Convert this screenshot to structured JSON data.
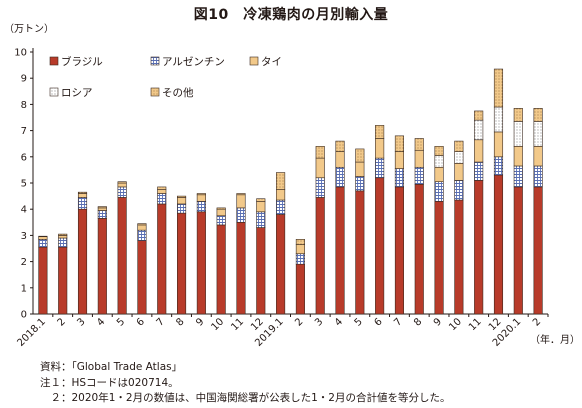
{
  "title": "図10　冷凍鶏肉の月別輸入量",
  "chart_data": {
    "type": "bar",
    "stacked": true,
    "ylabel": "（万トン）",
    "xlabel": "（年．月）",
    "ylim": [
      0,
      10
    ],
    "yticks": [
      0,
      1,
      2,
      3,
      4,
      5,
      6,
      7,
      8,
      9,
      10
    ],
    "grid": false,
    "legend_position": "top-left",
    "categories": [
      "2018.1",
      "2",
      "3",
      "4",
      "5",
      "6",
      "7",
      "8",
      "9",
      "10",
      "11",
      "12",
      "2019.1",
      "2",
      "3",
      "4",
      "5",
      "6",
      "7",
      "8",
      "9",
      "10",
      "11",
      "12",
      "2020.1",
      "2"
    ],
    "series": [
      {
        "name": "ブラジル",
        "color": "#b83b2a",
        "pattern": "solid",
        "values": [
          2.55,
          2.55,
          4.0,
          3.65,
          4.45,
          2.8,
          4.2,
          3.85,
          3.9,
          3.4,
          3.5,
          3.3,
          3.8,
          1.9,
          4.45,
          4.85,
          4.7,
          5.2,
          4.85,
          4.95,
          4.3,
          4.35,
          5.1,
          5.3,
          4.85,
          4.85
        ]
      },
      {
        "name": "アルゼンチン",
        "color": "#6f86c4",
        "pattern": "grid",
        "values": [
          0.3,
          0.35,
          0.45,
          0.3,
          0.4,
          0.4,
          0.4,
          0.35,
          0.4,
          0.35,
          0.55,
          0.6,
          0.55,
          0.4,
          0.75,
          0.75,
          0.55,
          0.75,
          0.7,
          0.65,
          0.75,
          0.75,
          0.7,
          0.7,
          0.8,
          0.8
        ]
      },
      {
        "name": "タイ",
        "color": "#f2c98a",
        "pattern": "solid",
        "values": [
          0.1,
          0.1,
          0.15,
          0.1,
          0.15,
          0.2,
          0.15,
          0.25,
          0.25,
          0.25,
          0.5,
          0.4,
          0.4,
          0.35,
          0.75,
          0.6,
          0.55,
          0.75,
          0.65,
          0.65,
          0.55,
          0.65,
          0.85,
          0.95,
          0.75,
          0.75
        ]
      },
      {
        "name": "ロシア",
        "color": "#ffffff",
        "pattern": "dots",
        "values": [
          0,
          0,
          0,
          0,
          0,
          0,
          0,
          0,
          0,
          0,
          0,
          0,
          0,
          0,
          0,
          0,
          0,
          0,
          0,
          0,
          0.45,
          0.45,
          0.75,
          0.95,
          0.95,
          0.95
        ]
      },
      {
        "name": "その他",
        "color": "#f2c98a",
        "pattern": "dots",
        "values": [
          0.02,
          0.05,
          0.05,
          0.05,
          0.05,
          0.05,
          0.1,
          0.05,
          0.05,
          0.05,
          0.05,
          0.1,
          0.65,
          0.2,
          0.45,
          0.4,
          0.5,
          0.5,
          0.6,
          0.45,
          0.35,
          0.4,
          0.35,
          1.45,
          0.5,
          0.5
        ]
      }
    ]
  },
  "notes": [
    "資料：「Global Trade Atlas」",
    "注１：HSコードは020714。",
    "　２：2020年1・2月の数値は、中国海関総署が公表した1・2月の合計値を等分した。"
  ]
}
